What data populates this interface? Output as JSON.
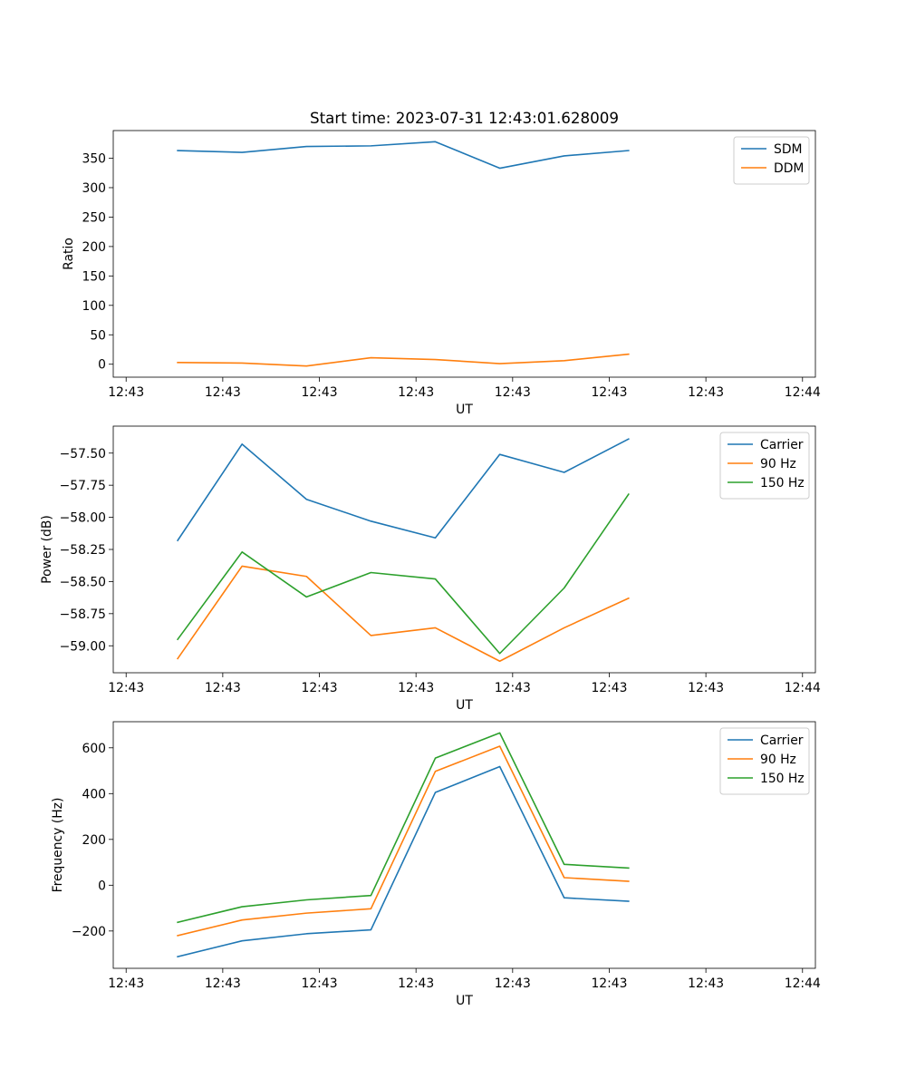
{
  "chart_data": [
    {
      "type": "line",
      "title": "Start time: 2023-07-31 12:43:01.628009",
      "xlabel": "UT",
      "ylabel": "Ratio",
      "x_tick_labels": [
        "12:43",
        "12:43",
        "12:43",
        "12:43",
        "12:43",
        "12:43",
        "12:43",
        "12:44"
      ],
      "xlim": [
        0,
        9.0
      ],
      "x_ticks": [
        0.2,
        1.7,
        3.2,
        4.7,
        6.2,
        7.7,
        9.2,
        10.7
      ],
      "x": [
        1.0,
        2.0,
        3.0,
        4.0,
        5.0,
        6.0,
        7.0,
        8.0
      ],
      "ylim": [
        -22,
        397
      ],
      "y_ticks": [
        0,
        50,
        100,
        150,
        200,
        250,
        300,
        350
      ],
      "y_tick_labels": [
        "0",
        "50",
        "100",
        "150",
        "200",
        "250",
        "300",
        "350"
      ],
      "legend": "top-right",
      "series": [
        {
          "name": "SDM",
          "color": "#1f77b4",
          "values": [
            363,
            360,
            370,
            371,
            378,
            333,
            354,
            363
          ]
        },
        {
          "name": "DDM",
          "color": "#ff7f0e",
          "values": [
            3,
            2,
            -3,
            11,
            8,
            1,
            6,
            17
          ]
        }
      ]
    },
    {
      "type": "line",
      "title": "",
      "xlabel": "UT",
      "ylabel": "Power (dB)",
      "x_tick_labels": [
        "12:43",
        "12:43",
        "12:43",
        "12:43",
        "12:43",
        "12:43",
        "12:43",
        "12:44"
      ],
      "xlim": [
        0,
        9.0
      ],
      "x_ticks": [
        0.2,
        1.7,
        3.2,
        4.7,
        6.2,
        7.7,
        9.2,
        10.7
      ],
      "x": [
        1.0,
        2.0,
        3.0,
        4.0,
        5.0,
        6.0,
        7.0,
        8.0
      ],
      "ylim": [
        -59.21,
        -57.29
      ],
      "y_ticks": [
        -59.0,
        -58.75,
        -58.5,
        -58.25,
        -58.0,
        -57.75,
        -57.5
      ],
      "y_tick_labels": [
        "−59.00",
        "−58.75",
        "−58.50",
        "−58.25",
        "−58.00",
        "−57.75",
        "−57.50"
      ],
      "legend": "top-right",
      "series": [
        {
          "name": "Carrier",
          "color": "#1f77b4",
          "values": [
            -58.18,
            -57.43,
            -57.86,
            -58.03,
            -58.16,
            -57.51,
            -57.65,
            -57.39
          ]
        },
        {
          "name": "90 Hz",
          "color": "#ff7f0e",
          "values": [
            -59.1,
            -58.38,
            -58.46,
            -58.92,
            -58.86,
            -59.12,
            -58.86,
            -58.63
          ]
        },
        {
          "name": "150 Hz",
          "color": "#2ca02c",
          "values": [
            -58.95,
            -58.27,
            -58.62,
            -58.43,
            -58.48,
            -59.06,
            -58.55,
            -57.82
          ]
        }
      ]
    },
    {
      "type": "line",
      "title": "",
      "xlabel": "UT",
      "ylabel": "Frequency (Hz)",
      "x_tick_labels": [
        "12:43",
        "12:43",
        "12:43",
        "12:43",
        "12:43",
        "12:43",
        "12:43",
        "12:44"
      ],
      "xlim": [
        0,
        9.0
      ],
      "x_ticks": [
        0.2,
        1.7,
        3.2,
        4.7,
        6.2,
        7.7,
        9.2,
        10.7
      ],
      "x": [
        1.0,
        2.0,
        3.0,
        4.0,
        5.0,
        6.0,
        7.0,
        8.0
      ],
      "ylim": [
        -363,
        714
      ],
      "y_ticks": [
        -200,
        0,
        200,
        400,
        600
      ],
      "y_tick_labels": [
        "−200",
        "0",
        "200",
        "400",
        "600"
      ],
      "legend": "top-right",
      "series": [
        {
          "name": "Carrier",
          "color": "#1f77b4",
          "values": [
            -312,
            -243,
            -212,
            -195,
            405,
            518,
            -55,
            -70
          ]
        },
        {
          "name": "90 Hz",
          "color": "#ff7f0e",
          "values": [
            -220,
            -152,
            -122,
            -103,
            497,
            607,
            33,
            17
          ]
        },
        {
          "name": "150 Hz",
          "color": "#2ca02c",
          "values": [
            -162,
            -94,
            -64,
            -45,
            555,
            665,
            91,
            75
          ]
        }
      ]
    }
  ]
}
